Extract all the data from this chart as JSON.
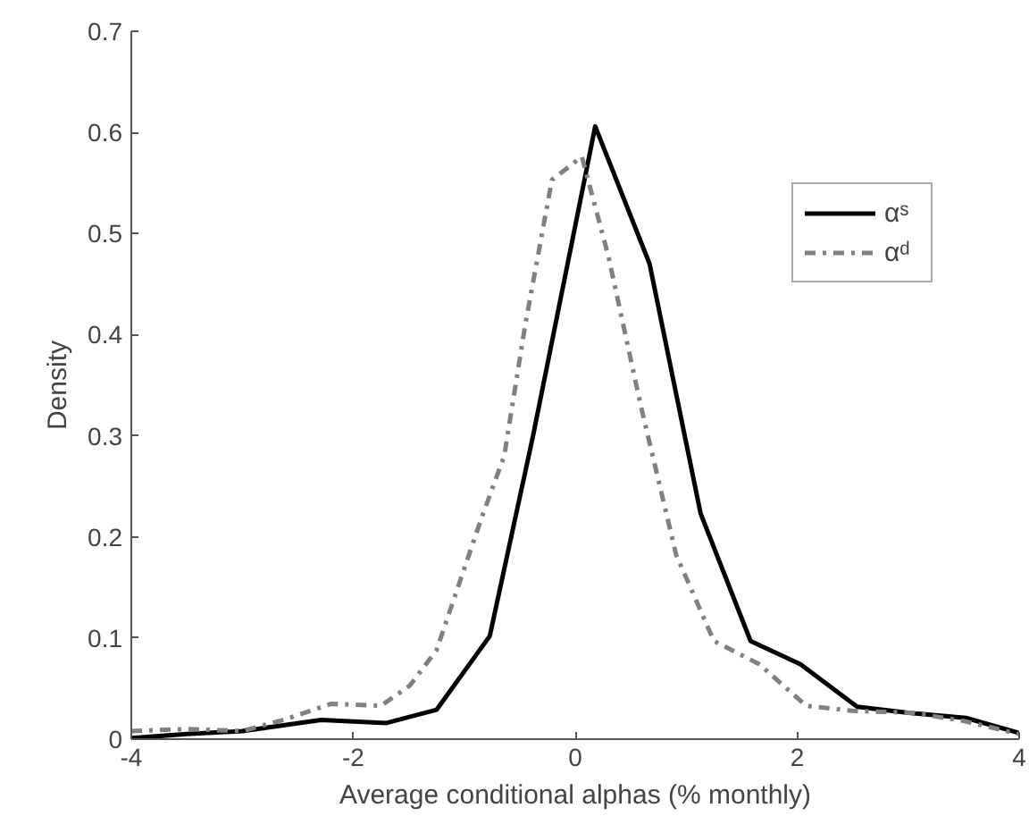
{
  "chart_data": {
    "type": "line",
    "xlabel": "Average conditional alphas (% monthly)",
    "ylabel": "Density",
    "xlim": [
      -4,
      4
    ],
    "xticks": [
      -4,
      -2,
      0,
      2,
      4
    ],
    "ylim": [
      0,
      0.7
    ],
    "yticks": [
      0,
      0.1,
      0.2,
      0.3,
      0.4,
      0.5,
      0.6,
      0.7
    ],
    "grid": false,
    "legend": "top right",
    "series": [
      {
        "name": "αˢ",
        "color": "#000000",
        "line_style": "solid",
        "x": [
          -4,
          -3.5,
          -3.0,
          -2.29,
          -1.7,
          -1.25,
          -0.77,
          -0.38,
          0.18,
          0.67,
          1.13,
          1.58,
          2.03,
          2.54,
          3.0,
          3.52,
          4
        ],
        "values": [
          0.001,
          0.005,
          0.008,
          0.019,
          0.016,
          0.029,
          0.102,
          0.3,
          0.606,
          0.47,
          0.223,
          0.097,
          0.074,
          0.032,
          0.026,
          0.021,
          0.006
        ]
      },
      {
        "name": "αᵈ",
        "color": "#808080",
        "line_style": "dashed",
        "x": [
          -4,
          -3.5,
          -3.0,
          -2.6,
          -2.2,
          -1.75,
          -1.49,
          -1.25,
          -0.85,
          -0.64,
          -0.45,
          -0.21,
          0.06,
          0.3,
          0.59,
          0.91,
          1.25,
          1.66,
          2.08,
          2.5,
          3.04,
          3.5,
          4
        ],
        "values": [
          0.008,
          0.01,
          0.008,
          0.02,
          0.035,
          0.033,
          0.053,
          0.088,
          0.217,
          0.28,
          0.41,
          0.553,
          0.576,
          0.477,
          0.33,
          0.182,
          0.097,
          0.074,
          0.033,
          0.028,
          0.026,
          0.018,
          0.005
        ]
      }
    ]
  }
}
